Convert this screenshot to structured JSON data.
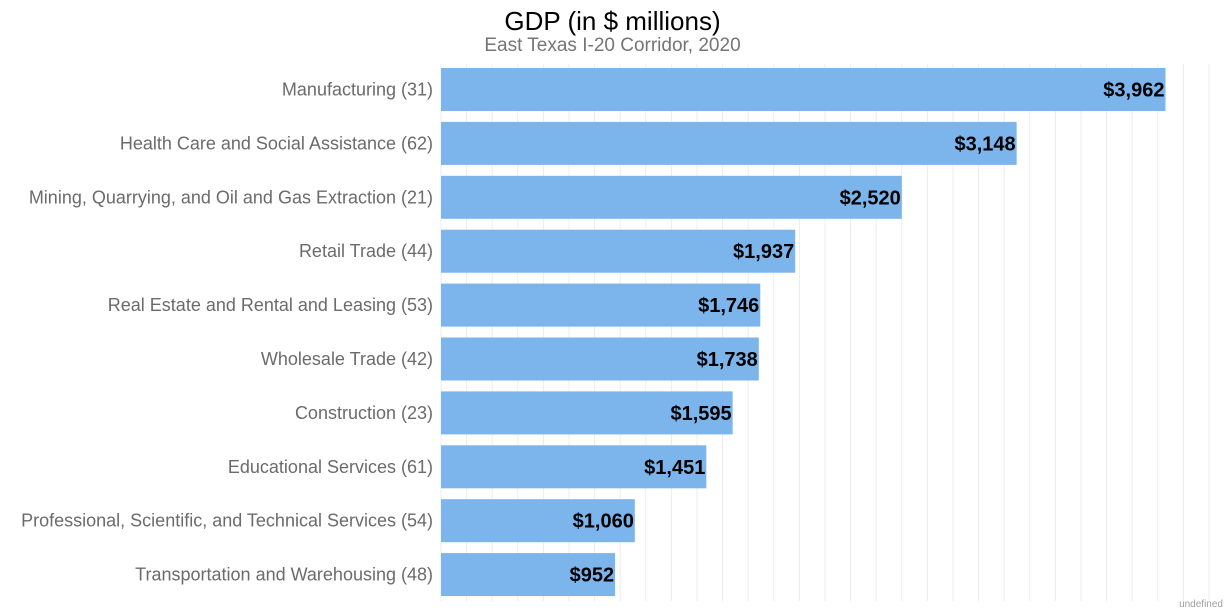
{
  "chart_data": {
    "type": "bar",
    "orientation": "horizontal",
    "title": "GDP (in $ millions)",
    "subtitle": "East Texas I-20 Corridor, 2020",
    "categories": [
      "Manufacturing (31)",
      "Health Care and Social Assistance (62)",
      "Mining, Quarrying, and Oil and Gas Extraction (21)",
      "Retail Trade (44)",
      "Real Estate and Rental and Leasing (53)",
      "Wholesale Trade (42)",
      "Construction (23)",
      "Educational Services (61)",
      "Professional, Scientific, and Technical Services (54)",
      "Transportation and Warehousing (48)"
    ],
    "values": [
      3962,
      3148,
      2520,
      1937,
      1746,
      1738,
      1595,
      1451,
      1060,
      952
    ],
    "value_labels": [
      "$3,962",
      "$3,148",
      "$2,520",
      "$1,937",
      "$1,746",
      "$1,738",
      "$1,595",
      "$1,451",
      "$1,060",
      "$952"
    ],
    "xlim": [
      0,
      4200
    ],
    "grid": true,
    "bar_color": "#7cb4ec"
  },
  "footer": "undefined"
}
